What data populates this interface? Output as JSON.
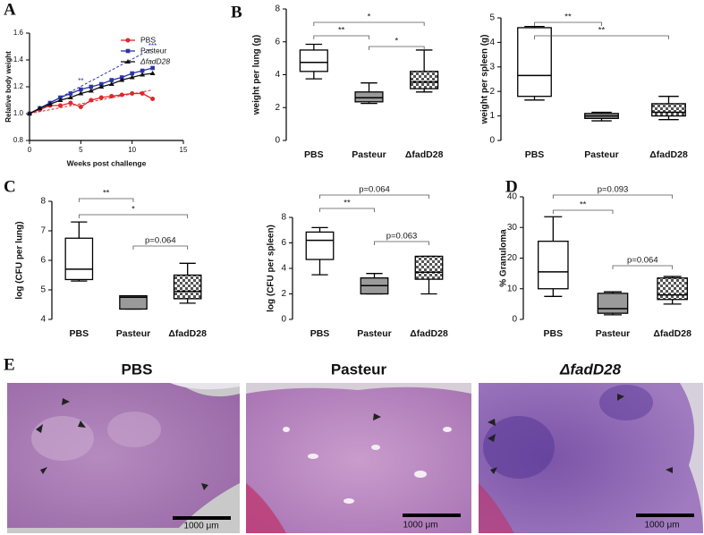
{
  "chart_data": [
    {
      "type": "line",
      "panel": "A",
      "xlabel": "Weeks post challenge",
      "ylabel": "Relative body weight",
      "x": [
        0,
        1,
        2,
        3,
        4,
        5,
        6,
        7,
        8,
        9,
        10,
        11,
        12
      ],
      "xlim": [
        0,
        15
      ],
      "xticks": [
        0,
        5,
        10,
        15
      ],
      "ylim": [
        0.8,
        1.6
      ],
      "yticks": [
        0.8,
        {
          "value": 1,
          "label": "1.0"
        },
        1.2,
        1.4,
        1.6
      ],
      "legend": "upper right",
      "annotations": [
        "**",
        "***"
      ],
      "series": [
        {
          "name": "PBS",
          "color": "#e0262b",
          "marker": "circle",
          "values": [
            1.0,
            1.03,
            1.06,
            1.06,
            1.08,
            1.05,
            1.1,
            1.12,
            1.13,
            1.14,
            1.15,
            1.15,
            1.11
          ]
        },
        {
          "name": "Pasteur",
          "color": "#2b35a8",
          "marker": "square",
          "values": [
            1.0,
            1.04,
            1.08,
            1.12,
            1.15,
            1.18,
            1.2,
            1.22,
            1.25,
            1.27,
            1.3,
            1.32,
            1.34
          ]
        },
        {
          "name": "ΔfadD28",
          "color": "#111111",
          "marker": "triangle",
          "values": [
            1.0,
            1.04,
            1.07,
            1.1,
            1.12,
            1.15,
            1.17,
            1.2,
            1.22,
            1.25,
            1.27,
            1.29,
            1.3
          ]
        }
      ]
    },
    {
      "type": "box",
      "panel": "B",
      "ylabel": "weight per lung (g)",
      "categories": [
        "PBS",
        "Pasteur",
        "ΔfadD28"
      ],
      "fills": [
        "#ffffff",
        "#9a9a9a",
        "checker"
      ],
      "ylim": [
        0,
        8
      ],
      "yticks": [
        0,
        2,
        4,
        6,
        8
      ],
      "boxes": [
        {
          "min": 3.75,
          "q1": 4.2,
          "median": 4.75,
          "q3": 5.5,
          "max": 5.85
        },
        {
          "min": 2.25,
          "q1": 2.35,
          "median": 2.6,
          "q3": 2.95,
          "max": 3.5
        },
        {
          "min": 2.95,
          "q1": 3.15,
          "median": 3.55,
          "q3": 4.2,
          "max": 5.5
        }
      ],
      "comparisons": [
        {
          "from": 0,
          "to": 2,
          "label": "*"
        },
        {
          "from": 0,
          "to": 1,
          "label": "**"
        },
        {
          "from": 1,
          "to": 2,
          "label": "*"
        }
      ]
    },
    {
      "type": "box",
      "ylabel": "weight per spleen (g)",
      "categories": [
        "PBS",
        "Pasteur",
        "ΔfadD28"
      ],
      "fills": [
        "#ffffff",
        "#9a9a9a",
        "checker"
      ],
      "ylim": [
        0,
        5
      ],
      "yticks": [
        0,
        1,
        2,
        3,
        4,
        5
      ],
      "boxes": [
        {
          "min": 1.65,
          "q1": 1.8,
          "median": 2.65,
          "q3": 4.6,
          "max": 4.65
        },
        {
          "min": 0.8,
          "q1": 0.9,
          "median": 1.0,
          "q3": 1.1,
          "max": 1.15
        },
        {
          "min": 0.85,
          "q1": 1.0,
          "median": 1.15,
          "q3": 1.5,
          "max": 1.8
        }
      ],
      "comparisons": [
        {
          "from": 0,
          "to": 1,
          "label": "**"
        },
        {
          "from": 0,
          "to": 2,
          "label": "**"
        }
      ]
    },
    {
      "type": "box",
      "panel": "C",
      "ylabel": "log (CFU per lung)",
      "categories": [
        "PBS",
        "Pasteur",
        "ΔfadD28"
      ],
      "fills": [
        "#ffffff",
        "#9a9a9a",
        "checker"
      ],
      "ylim": [
        4,
        8
      ],
      "yticks": [
        4,
        5,
        6,
        7,
        8
      ],
      "boxes": [
        {
          "min": 5.3,
          "q1": 5.35,
          "median": 5.7,
          "q3": 6.75,
          "max": 7.3
        },
        {
          "min": 4.35,
          "q1": 4.35,
          "median": 4.75,
          "q3": 4.8,
          "max": 4.8
        },
        {
          "min": 4.55,
          "q1": 4.7,
          "median": 4.95,
          "q3": 5.5,
          "max": 5.9
        }
      ],
      "comparisons": [
        {
          "from": 0,
          "to": 1,
          "label": "**"
        },
        {
          "from": 0,
          "to": 2,
          "label": "*"
        },
        {
          "from": 1,
          "to": 2,
          "label": "p=0.064"
        }
      ]
    },
    {
      "type": "box",
      "ylabel": "log (CFU per spleen)",
      "categories": [
        "PBS",
        "Pasteur",
        "ΔfadD28"
      ],
      "fills": [
        "#ffffff",
        "#9a9a9a",
        "checker"
      ],
      "ylim": [
        0,
        8
      ],
      "yticks": [
        0,
        2,
        4,
        6,
        8
      ],
      "boxes": [
        {
          "min": 3.5,
          "q1": 4.7,
          "median": 6.2,
          "q3": 6.85,
          "max": 7.2
        },
        {
          "min": 2.0,
          "q1": 2.0,
          "median": 2.65,
          "q3": 3.25,
          "max": 3.6
        },
        {
          "min": 2.0,
          "q1": 3.15,
          "median": 3.7,
          "q3": 4.95,
          "max": 4.95
        }
      ],
      "comparisons": [
        {
          "from": 0,
          "to": 2,
          "label": "p=0.064"
        },
        {
          "from": 0,
          "to": 1,
          "label": "**"
        },
        {
          "from": 1,
          "to": 2,
          "label": "p=0.063"
        }
      ]
    },
    {
      "type": "box",
      "panel": "D",
      "ylabel": "% Granuloma",
      "categories": [
        "PBS",
        "Pasteur",
        "ΔfadD28"
      ],
      "fills": [
        "#ffffff",
        "#9a9a9a",
        "checker"
      ],
      "ylim": [
        0,
        40
      ],
      "yticks": [
        0,
        10,
        20,
        30,
        40
      ],
      "boxes": [
        {
          "min": 7.5,
          "q1": 10,
          "median": 15.5,
          "q3": 25.5,
          "max": 33.5
        },
        {
          "min": 1.5,
          "q1": 2,
          "median": 3.5,
          "q3": 8.5,
          "max": 9
        },
        {
          "min": 5,
          "q1": 6.5,
          "median": 8,
          "q3": 13.5,
          "max": 14
        }
      ],
      "comparisons": [
        {
          "from": 0,
          "to": 2,
          "label": "p=0.093"
        },
        {
          "from": 0,
          "to": 1,
          "label": "**"
        },
        {
          "from": 1,
          "to": 2,
          "label": "p=0.064"
        }
      ]
    }
  ],
  "micrographs": {
    "label": "E",
    "panels": [
      {
        "title": "PBS",
        "scale": "1000 μm"
      },
      {
        "title": "Pasteur",
        "scale": "1000 μm"
      },
      {
        "title": "ΔfadD28",
        "scale": "1000 μm"
      }
    ]
  }
}
